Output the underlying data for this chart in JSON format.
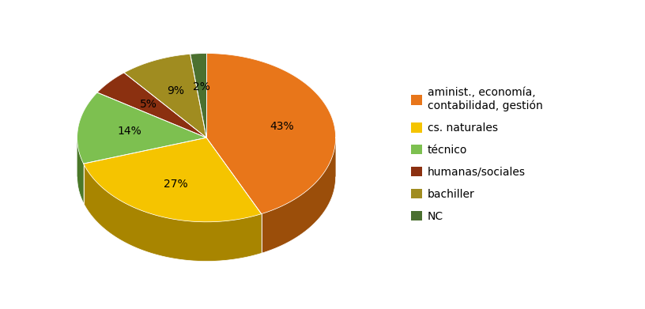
{
  "legend_labels": [
    "aminist., economía,\ncontabilidad, gestión",
    "cs. naturales",
    "técnico",
    "humanas/sociales",
    "bachiller",
    "NC"
  ],
  "values": [
    43,
    27,
    14,
    5,
    9,
    2
  ],
  "colors": [
    "#E8761A",
    "#F5C400",
    "#7DC050",
    "#8B3010",
    "#A08C20",
    "#4B7030"
  ],
  "shadow_colors": [
    "#9B4E0A",
    "#A88500",
    "#4A7828",
    "#5A1A00",
    "#706010",
    "#2A4018"
  ],
  "pct_fontsize": 10,
  "legend_fontsize": 10,
  "background_color": "#FFFFFF",
  "startangle": 90
}
